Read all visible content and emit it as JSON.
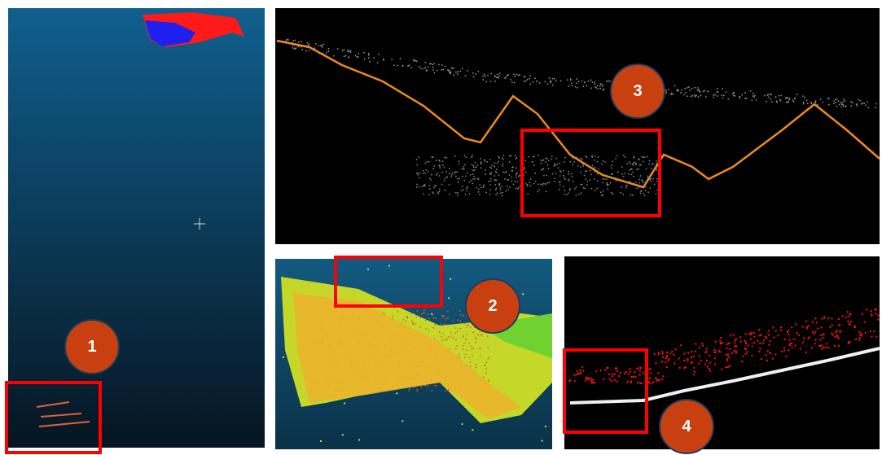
{
  "badges": [
    {
      "label": "1"
    },
    {
      "label": "2"
    },
    {
      "label": "3"
    },
    {
      "label": "4"
    }
  ]
}
